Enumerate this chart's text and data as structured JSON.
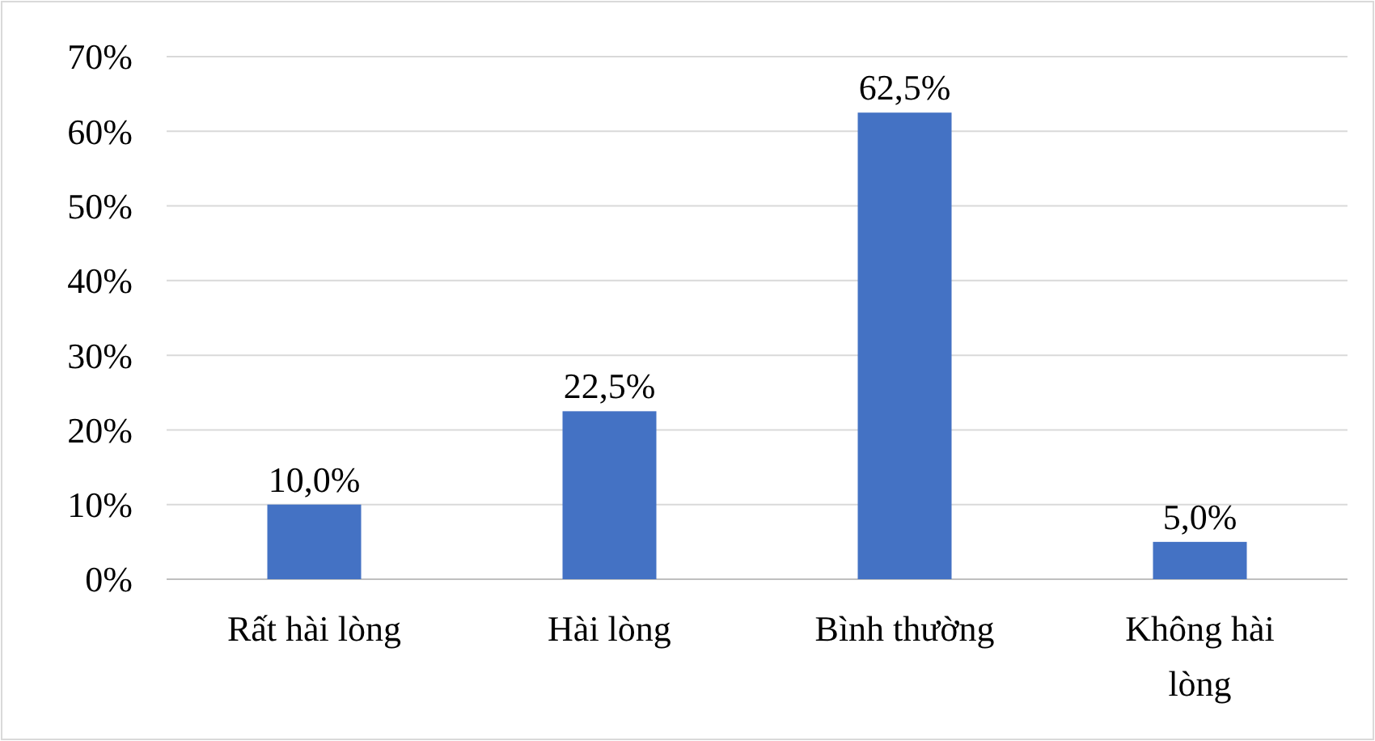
{
  "chart_data": {
    "type": "bar",
    "categories": [
      "Rất hài lòng",
      "Hài lòng",
      "Bình thường",
      "Không hài lòng"
    ],
    "values": [
      10,
      22.5,
      62.5,
      5
    ],
    "value_labels": [
      "10,0%",
      "22,5%",
      "62,5%",
      "5,0%"
    ],
    "color": "#4472c4",
    "ylim": [
      0,
      70
    ],
    "yticks": [
      {
        "value": 0,
        "label": "0%"
      },
      {
        "value": 10,
        "label": "10%"
      },
      {
        "value": 20,
        "label": "20%"
      },
      {
        "value": 30,
        "label": "30%"
      },
      {
        "value": 40,
        "label": "40%"
      },
      {
        "value": 50,
        "label": "50%"
      },
      {
        "value": 60,
        "label": "60%"
      },
      {
        "value": 70,
        "label": "70%"
      }
    ],
    "grid": "y"
  }
}
